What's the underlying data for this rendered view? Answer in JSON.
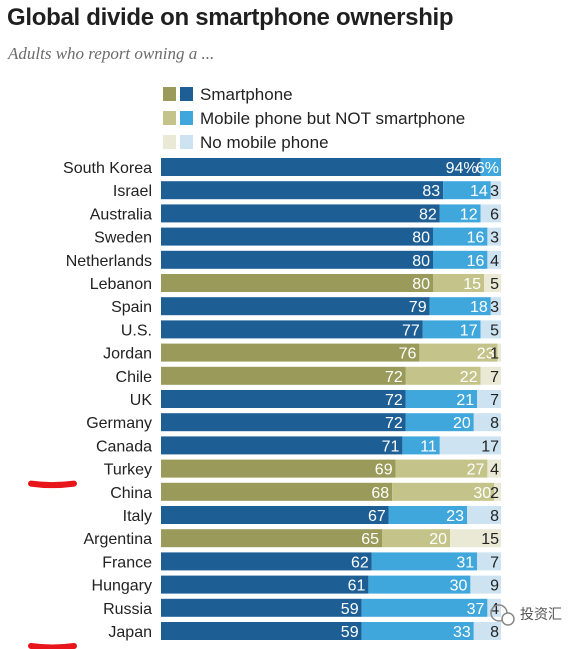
{
  "title": "Global divide on smartphone ownership",
  "subtitle": "Adults who report owning a ...",
  "colors": {
    "smartphone_blue": "#1d5f95",
    "smartphone_olive": "#9a9a5a",
    "mobile_blue": "#3fa7dc",
    "mobile_olive": "#c4c48a",
    "none_blue": "#cde3f1",
    "none_olive": "#e9e9d6",
    "label_text_on_dark": "#ffffff",
    "label_text_dark": "#222222",
    "annotation_red": "#e8161b"
  },
  "chart_data": {
    "type": "bar",
    "orientation": "horizontal",
    "stacked": true,
    "title": "Global divide on smartphone ownership",
    "subtitle": "Adults who report owning a ...",
    "legend": [
      "Smartphone",
      "Mobile phone but NOT smartphone",
      "No mobile phone"
    ],
    "legend_position": "top",
    "xlim": [
      0,
      100
    ],
    "categories": [
      "South Korea",
      "Israel",
      "Australia",
      "Sweden",
      "Netherlands",
      "Lebanon",
      "Spain",
      "U.S.",
      "Jordan",
      "Chile",
      "UK",
      "Germany",
      "Canada",
      "Turkey",
      "China",
      "Italy",
      "Argentina",
      "France",
      "Hungary",
      "Russia",
      "Japan"
    ],
    "series": [
      {
        "name": "Smartphone",
        "values": [
          94,
          83,
          82,
          80,
          80,
          80,
          79,
          77,
          76,
          72,
          72,
          72,
          71,
          69,
          68,
          67,
          65,
          62,
          61,
          59,
          59
        ]
      },
      {
        "name": "Mobile phone but NOT smartphone",
        "values": [
          6,
          14,
          12,
          16,
          16,
          15,
          18,
          17,
          23,
          22,
          21,
          20,
          11,
          27,
          30,
          23,
          20,
          31,
          30,
          37,
          33
        ]
      },
      {
        "name": "No mobile phone",
        "values": [
          null,
          3,
          6,
          3,
          4,
          5,
          3,
          5,
          1,
          7,
          7,
          8,
          17,
          4,
          2,
          8,
          15,
          7,
          9,
          4,
          8
        ]
      }
    ],
    "value_labels": [
      [
        "94%",
        "6%",
        ""
      ],
      [
        "83",
        "14",
        "3"
      ],
      [
        "82",
        "12",
        "6"
      ],
      [
        "80",
        "16",
        "3"
      ],
      [
        "80",
        "16",
        "4"
      ],
      [
        "80",
        "15",
        "5"
      ],
      [
        "79",
        "18",
        "3"
      ],
      [
        "77",
        "17",
        "5"
      ],
      [
        "76",
        "23",
        "1"
      ],
      [
        "72",
        "22",
        "7"
      ],
      [
        "72",
        "21",
        "7"
      ],
      [
        "72",
        "20",
        "8"
      ],
      [
        "71",
        "11",
        "17"
      ],
      [
        "69",
        "27",
        "4"
      ],
      [
        "68",
        "30",
        "2"
      ],
      [
        "67",
        "23",
        "8"
      ],
      [
        "65",
        "20",
        "15"
      ],
      [
        "62",
        "31",
        "7"
      ],
      [
        "61",
        "30",
        "9"
      ],
      [
        "59",
        "37",
        "4"
      ],
      [
        "59",
        "33",
        "8"
      ]
    ],
    "palette": [
      "blue",
      "blue",
      "blue",
      "blue",
      "blue",
      "olive",
      "blue",
      "blue",
      "olive",
      "olive",
      "blue",
      "blue",
      "blue",
      "olive",
      "olive",
      "blue",
      "olive",
      "blue",
      "blue",
      "blue",
      "blue"
    ],
    "highlighted": [
      "Turkey",
      "Japan"
    ]
  },
  "watermark": {
    "text": "投资汇",
    "icon": "wechat-icon"
  }
}
